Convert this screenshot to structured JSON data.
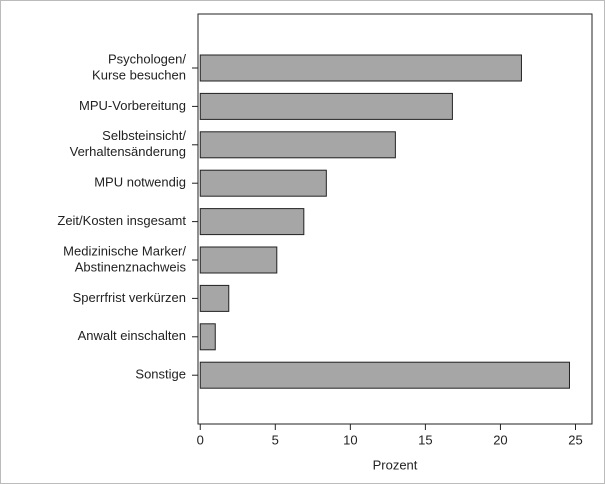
{
  "chart_data": {
    "type": "hbar",
    "categories": [
      [
        "Psychologen/",
        "Kurse besuchen"
      ],
      [
        "MPU-Vorbereitung"
      ],
      [
        "Selbsteinsicht/",
        "Verhaltensänderung"
      ],
      [
        "MPU notwendig"
      ],
      [
        "Zeit/Kosten insgesamt"
      ],
      [
        "Medizinische Marker/",
        "Abstinenznachweis"
      ],
      [
        "Sperrfrist verkürzen"
      ],
      [
        "Anwalt einschalten"
      ],
      [
        "Sonstige"
      ]
    ],
    "values": [
      21.4,
      16.8,
      13.0,
      8.4,
      6.9,
      5.1,
      1.9,
      1.0,
      24.6
    ],
    "color": "#a6a6a6",
    "xlabel": "Prozent",
    "xlim": [
      -0.15,
      26.1
    ],
    "xticks": [
      0,
      5,
      10,
      15,
      20,
      25
    ]
  }
}
